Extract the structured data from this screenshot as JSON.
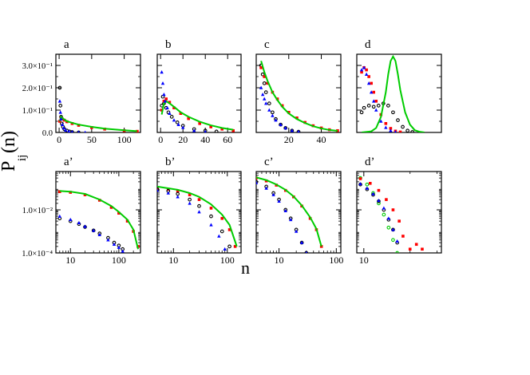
{
  "figure": {
    "ylabel_main": "P",
    "ylabel_sub": "ij",
    "ylabel_tail": "(n)",
    "xlabel": "n"
  },
  "colors": {
    "black": "#000000",
    "red": "#ff0000",
    "green": "#00cc00",
    "blue": "#0000ff"
  },
  "chart_data": [
    {
      "id": "a",
      "label": "a",
      "type": "scatter",
      "xscale": "linear",
      "yscale": "linear",
      "xlim": [
        -5,
        125
      ],
      "ylim": [
        0,
        0.35
      ],
      "xticks": [
        0,
        50,
        100
      ],
      "xticklabels": [
        "0",
        "50",
        "100"
      ],
      "yticks": [
        0.0,
        0.1,
        0.2,
        0.3
      ],
      "yticklabels": [
        "0.0",
        "1.0×10⁻¹",
        "2.0×10⁻¹",
        "3.0×10⁻¹"
      ],
      "series": [
        {
          "color": "black",
          "marker": "circle",
          "x": [
            1,
            2,
            3,
            4,
            6,
            8,
            12,
            16,
            20,
            30
          ],
          "y": [
            0.2,
            0.12,
            0.07,
            0.04,
            0.025,
            0.015,
            0.008,
            0.004,
            0.002,
            0.0
          ]
        },
        {
          "color": "red",
          "marker": "square",
          "x": [
            1,
            3,
            5,
            8,
            12,
            20,
            30,
            50,
            70,
            100,
            120
          ],
          "y": [
            0.05,
            0.065,
            0.06,
            0.055,
            0.048,
            0.04,
            0.032,
            0.022,
            0.015,
            0.008,
            0.005
          ]
        },
        {
          "color": "green",
          "marker": "line",
          "x": [
            1,
            3,
            5,
            8,
            12,
            20,
            30,
            50,
            70,
            100,
            120
          ],
          "y": [
            0.05,
            0.07,
            0.065,
            0.058,
            0.05,
            0.043,
            0.035,
            0.025,
            0.017,
            0.01,
            0.006
          ]
        },
        {
          "color": "blue",
          "marker": "triangle",
          "x": [
            1,
            2,
            3,
            5,
            7,
            10,
            15,
            20,
            30,
            40
          ],
          "y": [
            0.14,
            0.09,
            0.06,
            0.035,
            0.02,
            0.01,
            0.005,
            0.002,
            0.001,
            0.0
          ]
        }
      ]
    },
    {
      "id": "b",
      "label": "b",
      "type": "scatter",
      "xscale": "linear",
      "yscale": "linear",
      "xlim": [
        -3,
        72
      ],
      "ylim": [
        0,
        0.35
      ],
      "xticks": [
        0,
        20,
        40,
        60
      ],
      "xticklabels": [
        "0",
        "20",
        "40",
        "60"
      ],
      "yticks": [
        0.0,
        0.1,
        0.2,
        0.3
      ],
      "yticklabels": [
        "",
        "",
        "",
        ""
      ],
      "series": [
        {
          "color": "black",
          "marker": "circle",
          "x": [
            1,
            2,
            3,
            5,
            7,
            10,
            15,
            20,
            30,
            40,
            50
          ],
          "y": [
            0.12,
            0.16,
            0.13,
            0.11,
            0.09,
            0.07,
            0.045,
            0.03,
            0.015,
            0.008,
            0.004
          ]
        },
        {
          "color": "red",
          "marker": "square",
          "x": [
            1,
            3,
            5,
            8,
            12,
            18,
            25,
            35,
            45,
            55,
            65
          ],
          "y": [
            0.1,
            0.14,
            0.15,
            0.135,
            0.11,
            0.085,
            0.062,
            0.04,
            0.025,
            0.015,
            0.008
          ]
        },
        {
          "color": "green",
          "marker": "line",
          "x": [
            1,
            3,
            5,
            8,
            12,
            18,
            25,
            35,
            45,
            55,
            65
          ],
          "y": [
            0.08,
            0.13,
            0.14,
            0.13,
            0.115,
            0.09,
            0.07,
            0.048,
            0.032,
            0.02,
            0.012
          ]
        },
        {
          "color": "blue",
          "marker": "triangle",
          "x": [
            1,
            2,
            3,
            4,
            6,
            8,
            12,
            16,
            20,
            30,
            40
          ],
          "y": [
            0.27,
            0.22,
            0.17,
            0.14,
            0.11,
            0.085,
            0.055,
            0.035,
            0.022,
            0.008,
            0.003
          ]
        }
      ]
    },
    {
      "id": "c",
      "label": "c",
      "type": "scatter",
      "xscale": "linear",
      "yscale": "linear",
      "xlim": [
        0,
        52
      ],
      "ylim": [
        0,
        0.35
      ],
      "xticks": [
        20,
        40
      ],
      "xticklabels": [
        "20",
        "40"
      ],
      "yticks": [
        0.0,
        0.1,
        0.2,
        0.3
      ],
      "yticklabels": [
        "",
        "",
        "",
        ""
      ],
      "series": [
        {
          "color": "black",
          "marker": "circle",
          "x": [
            3,
            4,
            5,
            6,
            8,
            10,
            12,
            15,
            18,
            22,
            26
          ],
          "y": [
            0.3,
            0.26,
            0.22,
            0.18,
            0.13,
            0.09,
            0.06,
            0.035,
            0.02,
            0.008,
            0.003
          ]
        },
        {
          "color": "red",
          "marker": "square",
          "x": [
            3,
            5,
            7,
            10,
            13,
            16,
            20,
            25,
            30,
            35,
            40,
            45,
            50
          ],
          "y": [
            0.29,
            0.25,
            0.22,
            0.18,
            0.15,
            0.12,
            0.09,
            0.065,
            0.045,
            0.03,
            0.02,
            0.012,
            0.008
          ]
        },
        {
          "color": "green",
          "marker": "line",
          "x": [
            3,
            5,
            7,
            10,
            13,
            16,
            20,
            25,
            30,
            35,
            40,
            45,
            50
          ],
          "y": [
            0.32,
            0.27,
            0.23,
            0.18,
            0.145,
            0.115,
            0.085,
            0.06,
            0.042,
            0.028,
            0.018,
            0.011,
            0.007
          ]
        },
        {
          "color": "blue",
          "marker": "triangle",
          "x": [
            3,
            4,
            5,
            6,
            8,
            10,
            12,
            15,
            18,
            22,
            26
          ],
          "y": [
            0.2,
            0.17,
            0.15,
            0.13,
            0.1,
            0.075,
            0.055,
            0.035,
            0.02,
            0.008,
            0.003
          ]
        }
      ]
    },
    {
      "id": "d",
      "label": "d",
      "type": "scatter",
      "xscale": "linear",
      "yscale": "linear",
      "xlim": [
        0,
        35
      ],
      "ylim": [
        0,
        0.35
      ],
      "xticks": [],
      "xticklabels": [],
      "yticks": [
        0.0,
        0.1,
        0.2,
        0.3
      ],
      "yticklabels": [
        "",
        "",
        "",
        ""
      ],
      "series": [
        {
          "color": "black",
          "marker": "circle",
          "x": [
            2,
            3,
            5,
            7,
            9,
            11,
            13,
            15,
            17,
            19,
            21,
            23
          ],
          "y": [
            0.09,
            0.11,
            0.12,
            0.115,
            0.12,
            0.13,
            0.12,
            0.09,
            0.055,
            0.025,
            0.008,
            0.002
          ]
        },
        {
          "color": "red",
          "marker": "square",
          "x": [
            2,
            3,
            4,
            5,
            6,
            7,
            8,
            10,
            12,
            14,
            16,
            18
          ],
          "y": [
            0.27,
            0.29,
            0.28,
            0.25,
            0.22,
            0.18,
            0.14,
            0.08,
            0.04,
            0.018,
            0.006,
            0.002
          ]
        },
        {
          "color": "green",
          "marker": "line",
          "x": [
            2,
            6,
            8,
            10,
            12,
            13,
            14,
            15,
            16,
            17,
            18,
            20,
            22,
            24,
            26,
            28
          ],
          "y": [
            0.0,
            0.005,
            0.02,
            0.07,
            0.18,
            0.26,
            0.32,
            0.34,
            0.32,
            0.26,
            0.19,
            0.09,
            0.035,
            0.01,
            0.003,
            0.0
          ]
        },
        {
          "color": "blue",
          "marker": "triangle",
          "x": [
            2,
            3,
            4,
            5,
            6,
            7,
            8,
            10,
            12,
            14,
            16
          ],
          "y": [
            0.28,
            0.29,
            0.26,
            0.22,
            0.18,
            0.14,
            0.1,
            0.05,
            0.022,
            0.008,
            0.002
          ]
        }
      ]
    },
    {
      "id": "a'",
      "label": "a’",
      "type": "scatter",
      "xscale": "log",
      "yscale": "log",
      "xlim": [
        5,
        280
      ],
      "ylim": [
        0.0001,
        0.6
      ],
      "xticks": [
        10,
        100
      ],
      "xticklabels": [
        "10",
        "100"
      ],
      "yticks": [
        0.01,
        0.0001
      ],
      "yticklabels": [
        "1.0×10⁻²",
        "1.0×10⁻⁴"
      ],
      "series": [
        {
          "color": "red",
          "marker": "square",
          "x": [
            6,
            10,
            20,
            40,
            70,
            100,
            150,
            200,
            250
          ],
          "y": [
            0.07,
            0.065,
            0.05,
            0.028,
            0.013,
            0.007,
            0.003,
            0.001,
            0.0002
          ]
        },
        {
          "color": "green",
          "marker": "line",
          "x": [
            6,
            10,
            20,
            40,
            70,
            100,
            150,
            200,
            250
          ],
          "y": [
            0.075,
            0.07,
            0.055,
            0.03,
            0.015,
            0.008,
            0.0035,
            0.0012,
            0.00015
          ]
        },
        {
          "color": "black",
          "marker": "circle",
          "x": [
            6,
            10,
            15,
            20,
            30,
            40,
            60,
            80,
            100,
            120
          ],
          "y": [
            0.004,
            0.003,
            0.0022,
            0.0016,
            0.0011,
            0.0008,
            0.0005,
            0.0003,
            0.00022,
            0.00015
          ]
        },
        {
          "color": "blue",
          "marker": "triangle",
          "x": [
            6,
            10,
            15,
            20,
            30,
            40,
            60,
            80,
            100,
            120
          ],
          "y": [
            0.005,
            0.0035,
            0.0025,
            0.0017,
            0.0011,
            0.0007,
            0.0004,
            0.00025,
            0.00018,
            0.00012
          ]
        }
      ]
    },
    {
      "id": "b'",
      "label": "b’",
      "type": "scatter",
      "xscale": "log",
      "yscale": "log",
      "xlim": [
        5,
        180
      ],
      "ylim": [
        0.0001,
        0.6
      ],
      "xticks": [
        10,
        100
      ],
      "xticklabels": [
        "10",
        "100"
      ],
      "yticks": [
        0.01,
        0.0001
      ],
      "yticklabels": [
        "",
        ""
      ],
      "series": [
        {
          "color": "red",
          "marker": "square",
          "x": [
            5,
            8,
            12,
            20,
            30,
            50,
            80,
            110,
            140
          ],
          "y": [
            0.1,
            0.09,
            0.075,
            0.05,
            0.03,
            0.012,
            0.004,
            0.0012,
            0.0002
          ]
        },
        {
          "color": "green",
          "marker": "line",
          "x": [
            5,
            8,
            12,
            20,
            30,
            50,
            80,
            110,
            150
          ],
          "y": [
            0.12,
            0.1,
            0.085,
            0.06,
            0.04,
            0.018,
            0.006,
            0.002,
            0.0002
          ]
        },
        {
          "color": "black",
          "marker": "circle",
          "x": [
            5,
            8,
            12,
            20,
            30,
            50,
            80,
            110
          ],
          "y": [
            0.09,
            0.075,
            0.055,
            0.03,
            0.015,
            0.005,
            0.001,
            0.0002
          ]
        },
        {
          "color": "blue",
          "marker": "triangle",
          "x": [
            5,
            8,
            12,
            20,
            30,
            50,
            70,
            90
          ],
          "y": [
            0.08,
            0.06,
            0.04,
            0.02,
            0.008,
            0.002,
            0.0006,
            0.00015
          ]
        }
      ]
    },
    {
      "id": "c'",
      "label": "c’",
      "type": "scatter",
      "xscale": "log",
      "yscale": "log",
      "xlim": [
        4,
        120
      ],
      "ylim": [
        0.0001,
        0.6
      ],
      "xticks": [
        10,
        100
      ],
      "xticklabels": [
        "10",
        "100"
      ],
      "yticks": [
        0.01,
        0.0001
      ],
      "yticklabels": [
        "",
        ""
      ],
      "series": [
        {
          "color": "red",
          "marker": "square",
          "x": [
            4,
            6,
            9,
            13,
            18,
            25,
            35,
            45,
            55
          ],
          "y": [
            0.3,
            0.22,
            0.14,
            0.08,
            0.04,
            0.015,
            0.004,
            0.0012,
            0.0002
          ]
        },
        {
          "color": "green",
          "marker": "line",
          "x": [
            4,
            6,
            9,
            13,
            18,
            25,
            35,
            45,
            55
          ],
          "y": [
            0.32,
            0.24,
            0.15,
            0.085,
            0.042,
            0.016,
            0.0045,
            0.0013,
            0.0002
          ]
        },
        {
          "color": "black",
          "marker": "circle",
          "x": [
            4,
            6,
            8,
            10,
            13,
            16,
            20,
            25,
            30
          ],
          "y": [
            0.2,
            0.12,
            0.06,
            0.03,
            0.01,
            0.004,
            0.0012,
            0.0003,
            0.0001
          ]
        },
        {
          "color": "blue",
          "marker": "triangle",
          "x": [
            4,
            6,
            8,
            10,
            13,
            16,
            20,
            25,
            30
          ],
          "y": [
            0.18,
            0.1,
            0.05,
            0.025,
            0.009,
            0.0035,
            0.001,
            0.0003,
            0.0001
          ]
        }
      ]
    },
    {
      "id": "d'",
      "label": "d’",
      "type": "scatter",
      "xscale": "log",
      "yscale": "log",
      "xlim": [
        9,
        32
      ],
      "ylim": [
        0.0001,
        0.6
      ],
      "xticks": [
        10
      ],
      "xticklabels": [
        "10"
      ],
      "yticks": [
        0.01,
        0.0001
      ],
      "yticklabels": [
        "",
        ""
      ],
      "series": [
        {
          "color": "green",
          "marker": "circle",
          "x": [
            9.5,
            10.5,
            11.5,
            12.5,
            13.5,
            14.5,
            15.5,
            16.5
          ],
          "y": [
            0.3,
            0.15,
            0.06,
            0.02,
            0.006,
            0.0015,
            0.0004,
            0.0001
          ]
        },
        {
          "color": "red",
          "marker": "square",
          "x": [
            9.5,
            11,
            12.5,
            14,
            15.5,
            17,
            18,
            20,
            22,
            24
          ],
          "y": [
            0.28,
            0.17,
            0.08,
            0.03,
            0.01,
            0.003,
            0.0006,
            0.00015,
            0.00025,
            0.00015
          ]
        },
        {
          "color": "black",
          "marker": "circle",
          "x": [
            9.5,
            10.5,
            11.5,
            12.5,
            13.5,
            14.5,
            15.5,
            16.5
          ],
          "y": [
            0.15,
            0.09,
            0.05,
            0.025,
            0.01,
            0.0035,
            0.0012,
            0.0003
          ]
        },
        {
          "color": "blue",
          "marker": "triangle",
          "x": [
            9.5,
            10.5,
            11.5,
            12.5,
            13.5,
            14.5,
            15.5,
            16.5
          ],
          "y": [
            0.16,
            0.1,
            0.055,
            0.027,
            0.012,
            0.004,
            0.0012,
            0.00035
          ]
        }
      ]
    }
  ]
}
